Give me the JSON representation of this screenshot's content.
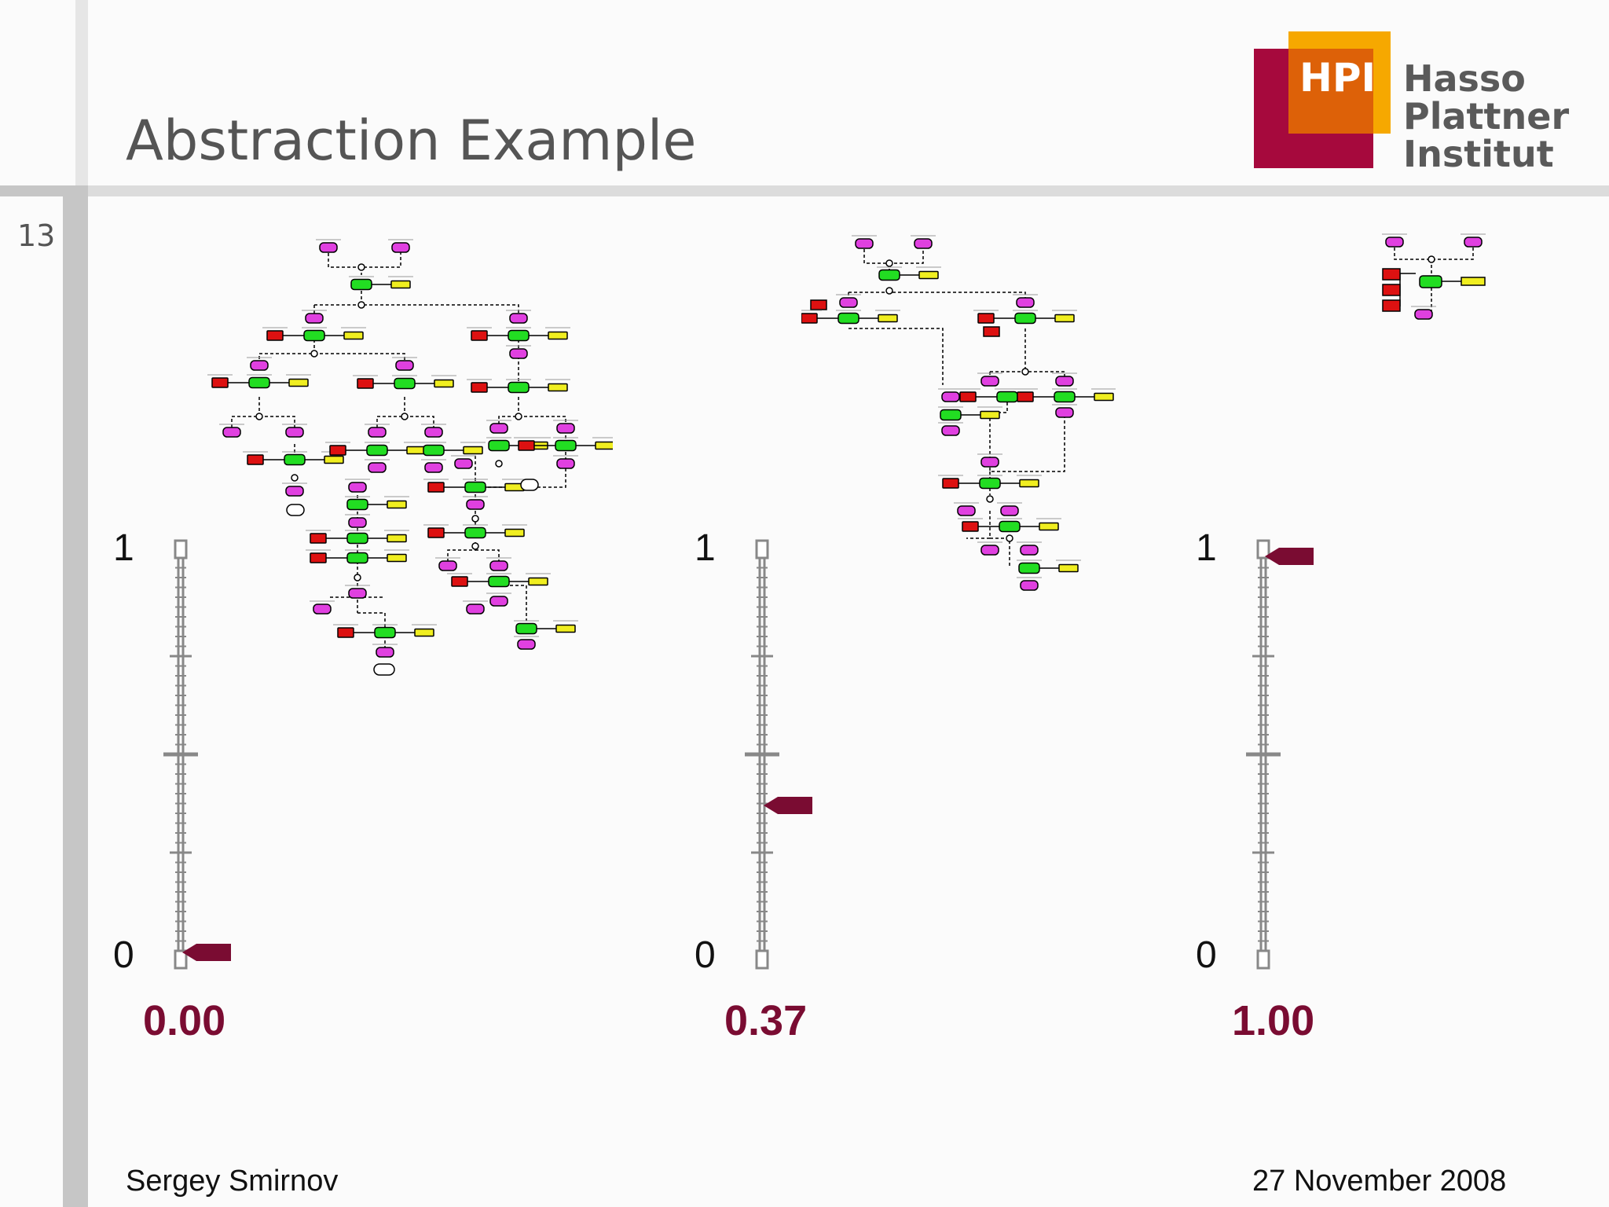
{
  "slide": {
    "number": "13",
    "title": "Abstraction Example",
    "author": "Sergey Smirnov",
    "date": "27 November 2008"
  },
  "logo": {
    "abbreviation": "HPI",
    "name_lines": [
      "Hasso",
      "Plattner",
      "Institut"
    ],
    "colors": {
      "red": "#a6093d",
      "orange": "#f6a800",
      "dark_orange": "#dd6108"
    }
  },
  "sliders": [
    {
      "id": "left",
      "top_label": "1",
      "bottom_label": "0",
      "value": 0.0,
      "value_text": "0.00"
    },
    {
      "id": "middle",
      "top_label": "1",
      "bottom_label": "0",
      "value": 0.37,
      "value_text": "0.37"
    },
    {
      "id": "right",
      "top_label": "1",
      "bottom_label": "0",
      "value": 1.0,
      "value_text": "1.00"
    }
  ],
  "colors": {
    "accent": "#7a0c32",
    "function_node": "#22dd22",
    "event_node": "#e040e0",
    "org_unit": "#dd1111",
    "data_object": "#f0ee20"
  }
}
